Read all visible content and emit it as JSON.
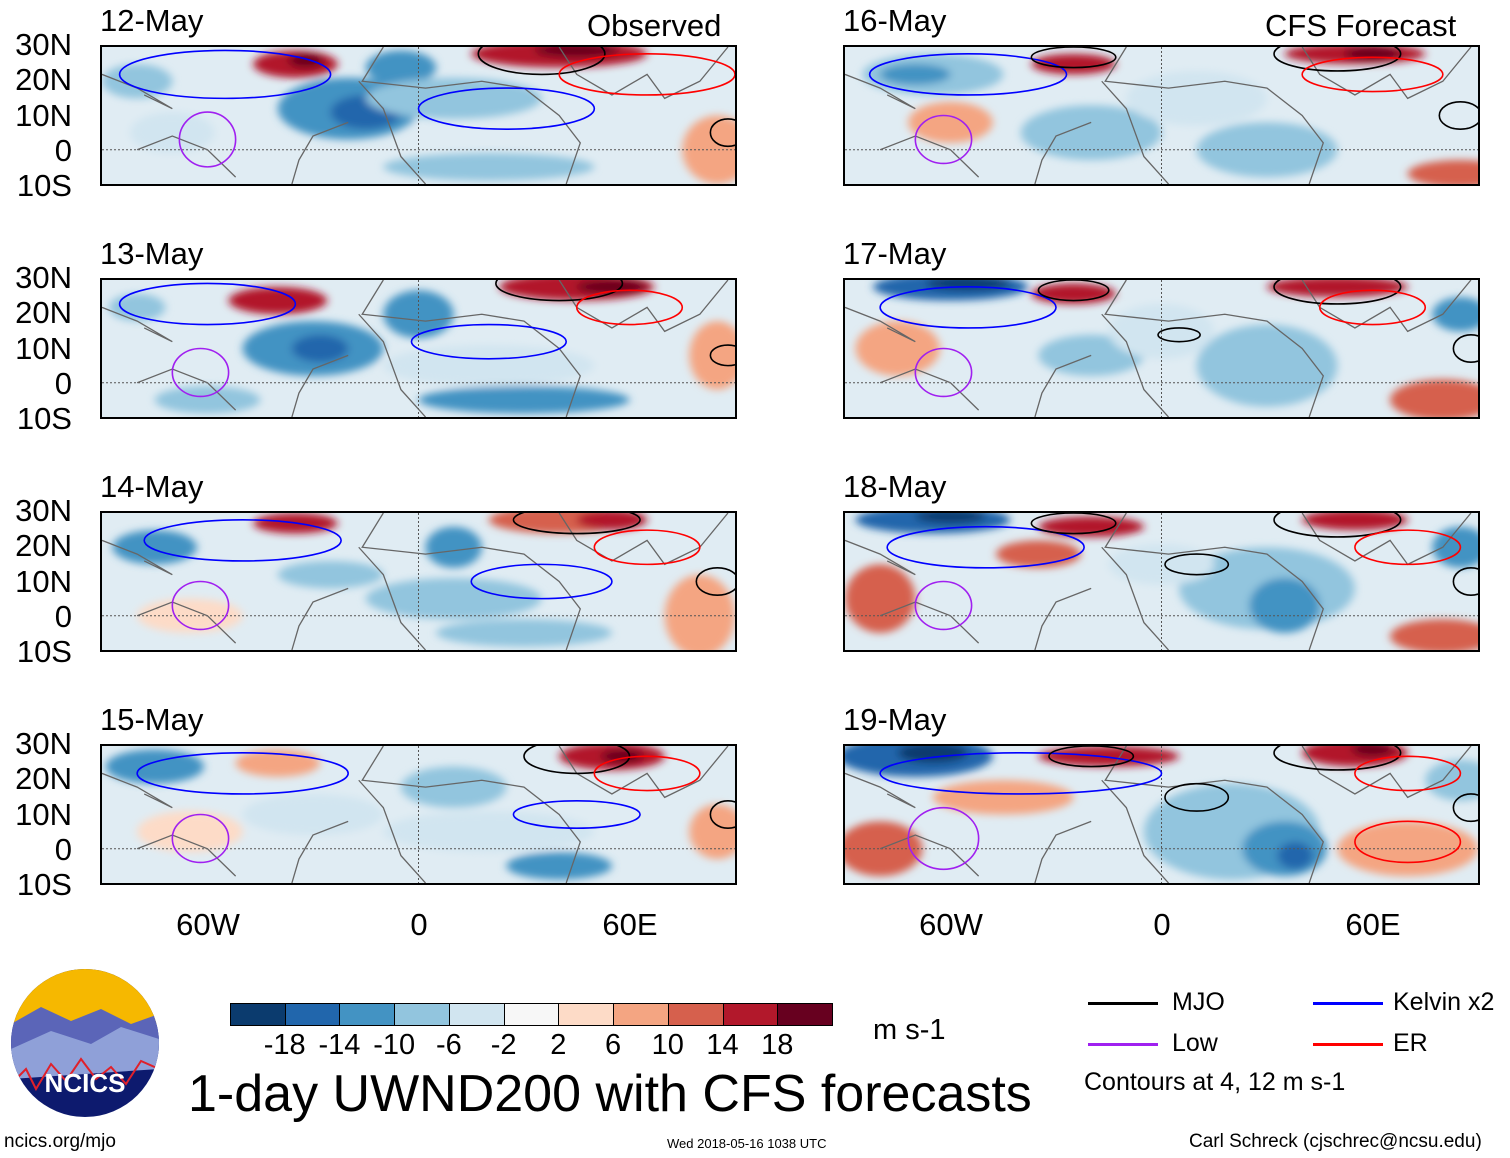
{
  "header": {
    "left_label": "Observed",
    "right_label": "CFS Forecast"
  },
  "chart_data": {
    "type": "heatmap",
    "title": "1-day UWND200 with CFS forecasts",
    "variable": "UWND200",
    "units": "m s-1",
    "panels": [
      {
        "date": "12-May",
        "kind": "observed"
      },
      {
        "date": "13-May",
        "kind": "observed"
      },
      {
        "date": "14-May",
        "kind": "observed"
      },
      {
        "date": "15-May",
        "kind": "observed"
      },
      {
        "date": "16-May",
        "kind": "forecast"
      },
      {
        "date": "17-May",
        "kind": "forecast"
      },
      {
        "date": "18-May",
        "kind": "forecast"
      },
      {
        "date": "19-May",
        "kind": "forecast"
      }
    ],
    "lat_ticks": [
      "30N",
      "20N",
      "10N",
      "0",
      "10S"
    ],
    "lon_ticks": [
      "60W",
      "0",
      "60E"
    ],
    "lat_range": [
      -10,
      30
    ],
    "lon_range": [
      -90,
      90
    ],
    "colorbar": {
      "levels": [
        "-18",
        "-14",
        "-10",
        "-6",
        "-2",
        "2",
        "6",
        "10",
        "14",
        "18"
      ],
      "colors": [
        "#0b3b6e",
        "#2166ac",
        "#4393c3",
        "#92c5de",
        "#d1e5f0",
        "#f7f7f7",
        "#fddbc7",
        "#f4a582",
        "#d6604d",
        "#b2182b",
        "#67001f"
      ],
      "units": "m s-1"
    },
    "legend": [
      {
        "label": "MJO",
        "color": "#000000"
      },
      {
        "label": "Kelvin x2",
        "color": "#0000ff"
      },
      {
        "label": "Low",
        "color": "#a020f0"
      },
      {
        "label": "ER",
        "color": "#ff0000"
      }
    ],
    "contour_note": "Contours at 4, 12 m s-1"
  },
  "footer": {
    "url": "ncics.org/mjo",
    "timestamp": "Wed 2018-05-16 1038 UTC",
    "credit": "Carl Schreck (cjschrec@ncsu.edu)",
    "logo_text": "NCICS"
  }
}
